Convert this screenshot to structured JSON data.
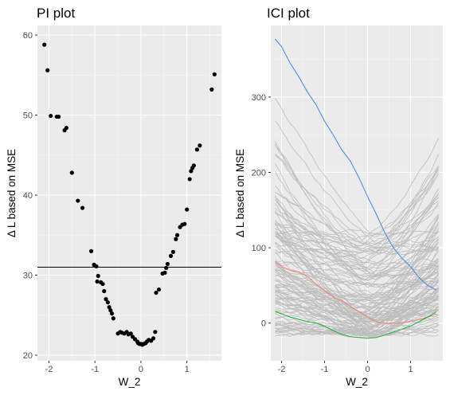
{
  "chart_data": [
    {
      "type": "scatter",
      "title": "PI plot",
      "xlabel": "W_2",
      "ylabel": "Δ L based on MSE",
      "xlim": [
        -2.25,
        1.75
      ],
      "ylim": [
        19.3,
        61.2
      ],
      "x_ticks": [
        -2,
        -1,
        0,
        1
      ],
      "x_tick_labels": [
        "-2",
        "-1",
        "0",
        "1"
      ],
      "y_ticks": [
        20,
        30,
        40,
        50,
        60
      ],
      "y_tick_labels": [
        "20",
        "30",
        "40",
        "50",
        "60"
      ],
      "hline": 31.0,
      "grid": true,
      "points": [
        [
          -2.1,
          58.8
        ],
        [
          -2.03,
          55.6
        ],
        [
          -1.96,
          49.9
        ],
        [
          -1.83,
          49.8
        ],
        [
          -1.79,
          49.8
        ],
        [
          -1.66,
          48.1
        ],
        [
          -1.62,
          48.4
        ],
        [
          -1.5,
          42.8
        ],
        [
          -1.37,
          39.3
        ],
        [
          -1.27,
          38.4
        ],
        [
          -1.08,
          33.0
        ],
        [
          -1.02,
          31.3
        ],
        [
          -0.97,
          31.1
        ],
        [
          -0.93,
          29.9
        ],
        [
          -0.95,
          29.2
        ],
        [
          -0.87,
          29.1
        ],
        [
          -0.83,
          28.9
        ],
        [
          -0.8,
          28.0
        ],
        [
          -0.76,
          27.0
        ],
        [
          -0.72,
          26.6
        ],
        [
          -0.69,
          26.0
        ],
        [
          -0.66,
          25.6
        ],
        [
          -0.63,
          25.2
        ],
        [
          -0.6,
          24.6
        ],
        [
          -0.5,
          22.7
        ],
        [
          -0.45,
          22.9
        ],
        [
          -0.41,
          22.8
        ],
        [
          -0.36,
          22.7
        ],
        [
          -0.31,
          22.9
        ],
        [
          -0.27,
          22.6
        ],
        [
          -0.22,
          22.7
        ],
        [
          -0.18,
          22.3
        ],
        [
          -0.13,
          22.0
        ],
        [
          -0.08,
          21.7
        ],
        [
          -0.06,
          21.5
        ],
        [
          -0.03,
          21.4
        ],
        [
          0.0,
          21.4
        ],
        [
          0.03,
          21.3
        ],
        [
          0.06,
          21.4
        ],
        [
          0.1,
          21.5
        ],
        [
          0.13,
          21.7
        ],
        [
          0.17,
          21.9
        ],
        [
          0.22,
          21.8
        ],
        [
          0.27,
          22.1
        ],
        [
          0.31,
          22.9
        ],
        [
          0.33,
          27.8
        ],
        [
          0.39,
          28.2
        ],
        [
          0.47,
          30.2
        ],
        [
          0.52,
          30.3
        ],
        [
          0.55,
          30.9
        ],
        [
          0.58,
          31.4
        ],
        [
          0.65,
          32.4
        ],
        [
          0.7,
          32.9
        ],
        [
          0.76,
          34.5
        ],
        [
          0.79,
          35.0
        ],
        [
          0.85,
          36.0
        ],
        [
          0.9,
          36.3
        ],
        [
          0.95,
          36.4
        ],
        [
          1.0,
          38.2
        ],
        [
          1.06,
          42.0
        ],
        [
          1.09,
          43.0
        ],
        [
          1.12,
          43.4
        ],
        [
          1.15,
          43.7
        ],
        [
          1.22,
          45.7
        ],
        [
          1.28,
          46.2
        ],
        [
          1.54,
          53.2
        ],
        [
          1.6,
          55.1
        ]
      ]
    },
    {
      "type": "line",
      "title": "ICI plot",
      "xlabel": "W_2",
      "ylabel": "Δ L based on MSE",
      "xlim": [
        -2.25,
        1.75
      ],
      "ylim": [
        -50,
        395
      ],
      "x_ticks": [
        -2,
        -1,
        0,
        1
      ],
      "x_tick_labels": [
        "-2",
        "-1",
        "0",
        "1"
      ],
      "y_ticks": [
        0,
        100,
        200,
        300
      ],
      "y_tick_labels": [
        "0",
        "100",
        "200",
        "300"
      ],
      "grid": true,
      "background_curve_count": 120,
      "colors": {
        "background": "#bdbdbd",
        "blue": "#4d84d8",
        "red": "#e8807a",
        "green": "#1aab39"
      },
      "series": [
        {
          "color": "#4d84d8",
          "x": [
            -2.15,
            -2.0,
            -1.8,
            -1.6,
            -1.4,
            -1.2,
            -1.0,
            -0.8,
            -0.6,
            -0.4,
            -0.2,
            0.0,
            0.2,
            0.4,
            0.6,
            0.8,
            1.0,
            1.2,
            1.4,
            1.6
          ],
          "y": [
            377,
            367,
            345,
            327,
            307,
            290,
            268,
            250,
            230,
            215,
            193,
            168,
            145,
            120,
            100,
            86,
            75,
            60,
            50,
            44
          ]
        },
        {
          "color": "#e8807a",
          "x": [
            -2.15,
            -2.0,
            -1.8,
            -1.6,
            -1.4,
            -1.2,
            -1.0,
            -0.8,
            -0.6,
            -0.4,
            -0.2,
            0.0,
            0.2,
            0.4,
            0.6,
            0.8,
            1.0,
            1.2,
            1.4,
            1.6
          ],
          "y": [
            82,
            75,
            70,
            68,
            62,
            52,
            43,
            35,
            30,
            22,
            15,
            8,
            2,
            0,
            0,
            0,
            2,
            5,
            8,
            12
          ]
        },
        {
          "color": "#1aab39",
          "x": [
            -2.15,
            -2.0,
            -1.8,
            -1.6,
            -1.4,
            -1.2,
            -1.0,
            -0.8,
            -0.6,
            -0.4,
            -0.2,
            0.0,
            0.2,
            0.4,
            0.6,
            0.8,
            1.0,
            1.2,
            1.4,
            1.6
          ],
          "y": [
            16,
            12,
            8,
            5,
            2,
            0,
            -4,
            -10,
            -15,
            -18,
            -19,
            -20,
            -19,
            -16,
            -12,
            -8,
            -4,
            2,
            8,
            15
          ]
        }
      ]
    }
  ]
}
